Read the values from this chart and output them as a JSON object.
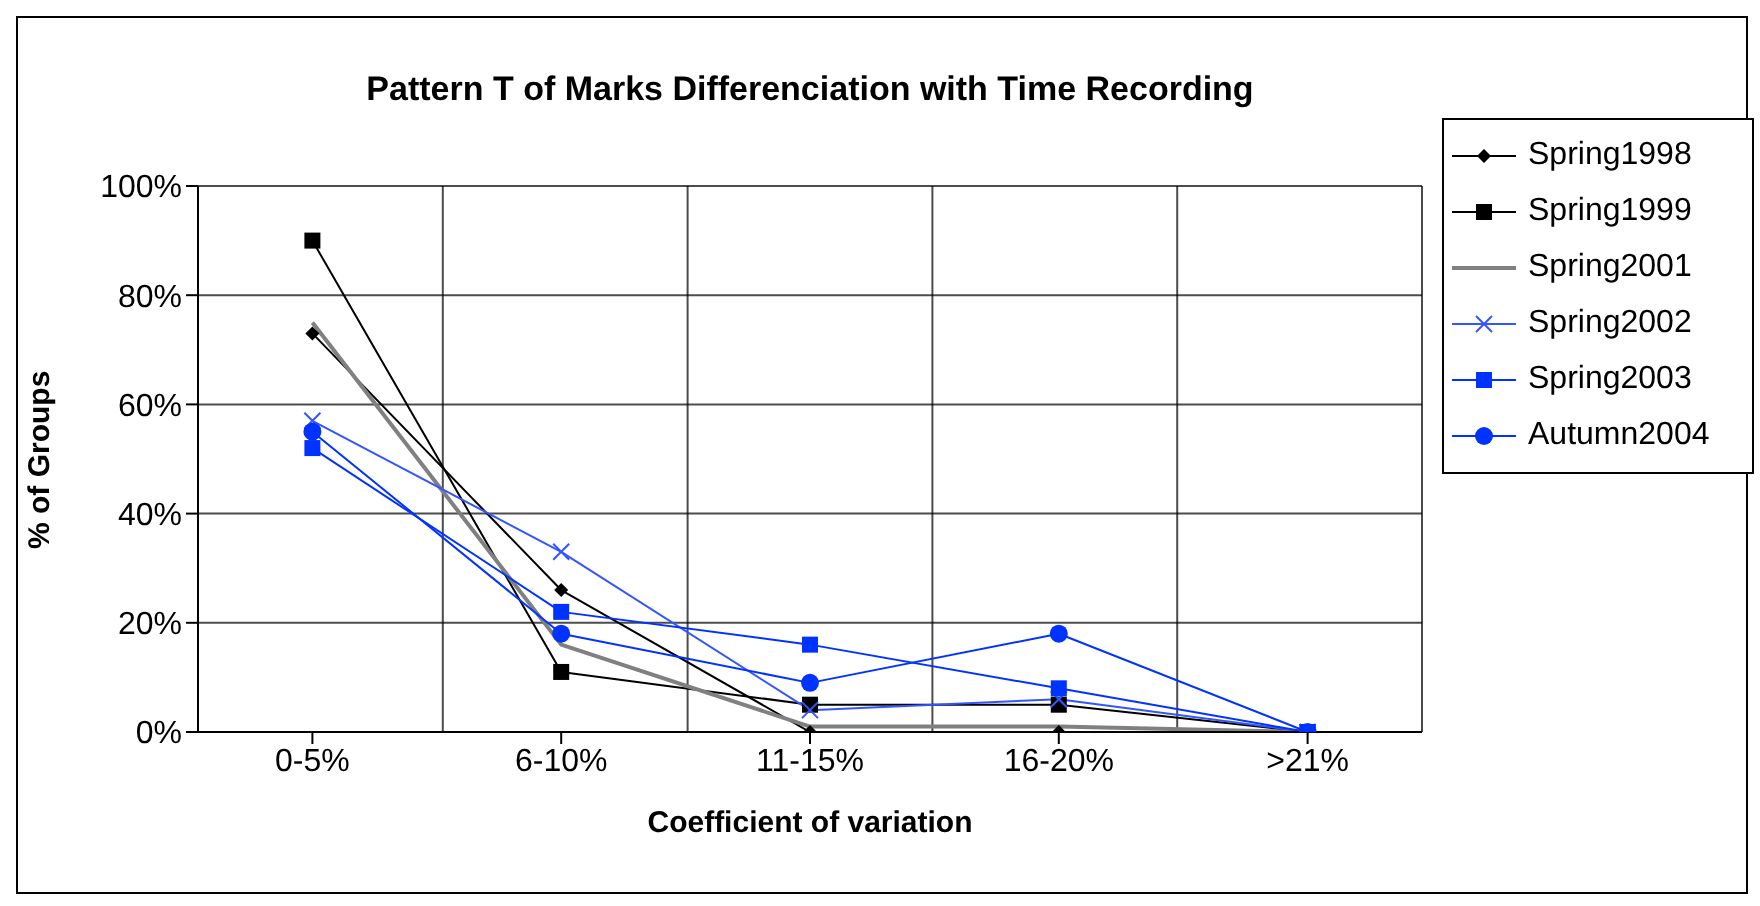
{
  "chart_data": {
    "type": "line",
    "title": "Pattern T of Marks Differenciation with Time Recording",
    "xlabel": "Coefficient of variation",
    "ylabel": "% of Groups",
    "categories": [
      "0-5%",
      "6-10%",
      "11-15%",
      "16-20%",
      ">21%"
    ],
    "series": [
      {
        "name": "Spring1998",
        "color": "#000000",
        "marker": "diamond",
        "values": [
          73,
          26,
          0,
          0,
          0
        ]
      },
      {
        "name": "Spring1999",
        "color": "#000000",
        "marker": "square",
        "values": [
          90,
          11,
          5,
          5,
          0
        ]
      },
      {
        "name": "Spring2001",
        "color": "#808080",
        "marker": "none",
        "values": [
          75,
          16,
          1,
          1,
          0
        ]
      },
      {
        "name": "Spring2002",
        "color": "#3355ff",
        "marker": "cross",
        "values": [
          57,
          33,
          4,
          6,
          0
        ]
      },
      {
        "name": "Spring2003",
        "color": "#0033ff",
        "marker": "square",
        "values": [
          52,
          22,
          16,
          8,
          0
        ]
      },
      {
        "name": "Autumn2004",
        "color": "#0033ff",
        "marker": "circle",
        "values": [
          55,
          18,
          9,
          18,
          0
        ]
      }
    ],
    "ylim": [
      0,
      100
    ],
    "yticks": [
      {
        "value": 0,
        "label": "0%"
      },
      {
        "value": 20,
        "label": "20%"
      },
      {
        "value": 40,
        "label": "40%"
      },
      {
        "value": 60,
        "label": "60%"
      },
      {
        "value": 80,
        "label": "80%"
      },
      {
        "value": 100,
        "label": "100%"
      }
    ],
    "grid": true,
    "legend": "top right"
  }
}
